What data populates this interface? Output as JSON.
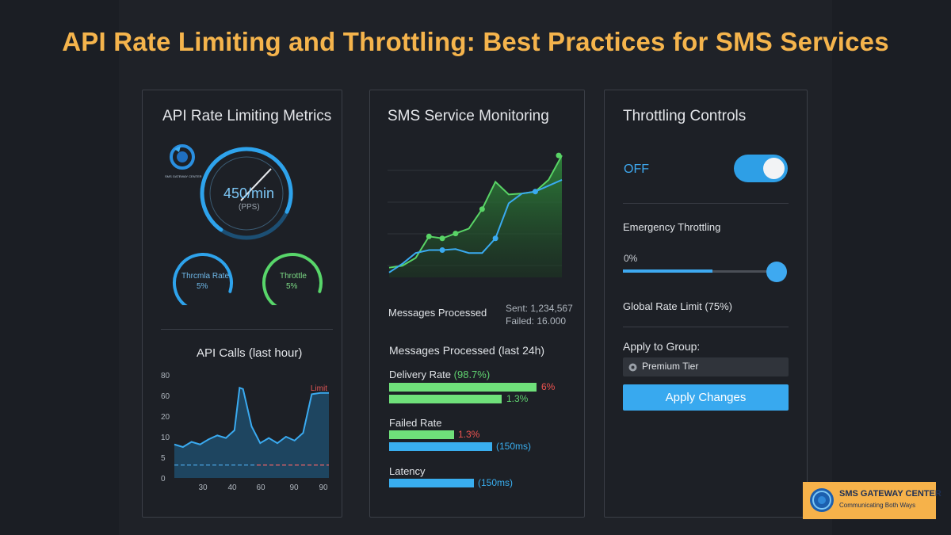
{
  "title": "API Rate Limiting and Throttling: Best Practices for SMS Services",
  "panel_metrics": {
    "title": "API Rate Limiting Metrics",
    "logo_text": "SMS GATEWAY CENTER",
    "gauge_main": {
      "value": "450/min",
      "unit": "(PPS)",
      "fill": 0.72
    },
    "gauge_left": {
      "label": "Thrcmla Rate",
      "value": "5%",
      "fill": 0.7
    },
    "gauge_right": {
      "label": "Throttle",
      "value": "5%",
      "fill": 0.7
    },
    "calls_title": "API Calls (last hour)"
  },
  "panel_monitor": {
    "title": "SMS Service Monitoring",
    "messages_label": "Messages Processed",
    "sent": "Sent: 1,234,567",
    "failed": "Failed: 16.000",
    "last24_label": "Messages Processed (last 24h)",
    "delivery": {
      "label": "Delivery Rate",
      "pct": "(98.7%)",
      "red": "6%",
      "green": "1.3%"
    },
    "failed_rate": {
      "label": "Failed Rate",
      "red": "1.3%",
      "blue": "(150ms)"
    },
    "latency": {
      "label": "Latency",
      "blue": "(150ms)"
    }
  },
  "panel_controls": {
    "title": "Throttling Controls",
    "toggle_state": "OFF",
    "emergency_label": "Emergency Throttling",
    "slider_value": "0%",
    "slider_fill_fraction": 0.58,
    "global_label": "Global Rate Limit (75%)",
    "apply_group_label": "Apply to Group:",
    "group_value": "Premium Tier",
    "apply_button": "Apply Changes"
  },
  "brand": {
    "name": "SMS GATEWAY CENTER",
    "tagline": "Communicating Both Ways"
  },
  "chart_data": [
    {
      "type": "line",
      "title": "API Calls (last hour)",
      "x": [
        0,
        5,
        10,
        15,
        20,
        25,
        30,
        35,
        38,
        40,
        45,
        50,
        55,
        60,
        65,
        70,
        75,
        80,
        85,
        90
      ],
      "values": [
        26,
        24,
        28,
        26,
        30,
        33,
        31,
        37,
        70,
        69,
        40,
        27,
        31,
        27,
        32,
        29,
        35,
        65,
        66,
        66
      ],
      "limit": 10,
      "limit_label": "Limit",
      "ytick_labels": [
        "80",
        "60",
        "20",
        "10",
        "5",
        "0"
      ],
      "xtick_labels": [
        "30",
        "40",
        "60",
        "90",
        "90"
      ]
    },
    {
      "type": "area",
      "title": "SMS Service Monitoring",
      "series": [
        {
          "name": "green",
          "values": [
            10,
            12,
            20,
            42,
            40,
            45,
            50,
            70,
            98,
            85,
            86,
            88,
            100,
            125
          ]
        },
        {
          "name": "blue",
          "values": [
            5,
            14,
            25,
            28,
            28,
            29,
            25,
            25,
            40,
            76,
            86,
            88,
            94,
            100
          ]
        }
      ]
    }
  ]
}
